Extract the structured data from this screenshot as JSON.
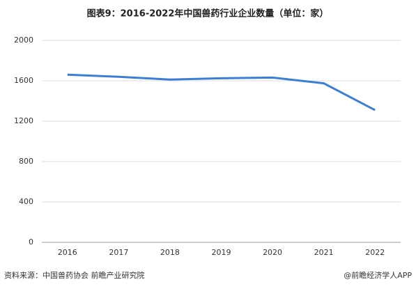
{
  "chart_data": {
    "type": "line",
    "title": "图表9：2016-2022年中国兽药行业企业数量（单位：家）",
    "categories": [
      "2016",
      "2017",
      "2018",
      "2019",
      "2020",
      "2021",
      "2022"
    ],
    "series": [
      {
        "name": "企业数量",
        "color": "#3a7fd5",
        "values": [
          1660,
          1640,
          1612,
          1625,
          1632,
          1575,
          1310
        ]
      }
    ],
    "ylim": [
      0,
      2000
    ],
    "yticks": [
      0,
      400,
      800,
      1200,
      1600,
      2000
    ],
    "grid": true
  },
  "footer": {
    "source": "资料来源：中国兽药协会 前瞻产业研究院",
    "brand": "@前瞻经济学人APP"
  }
}
